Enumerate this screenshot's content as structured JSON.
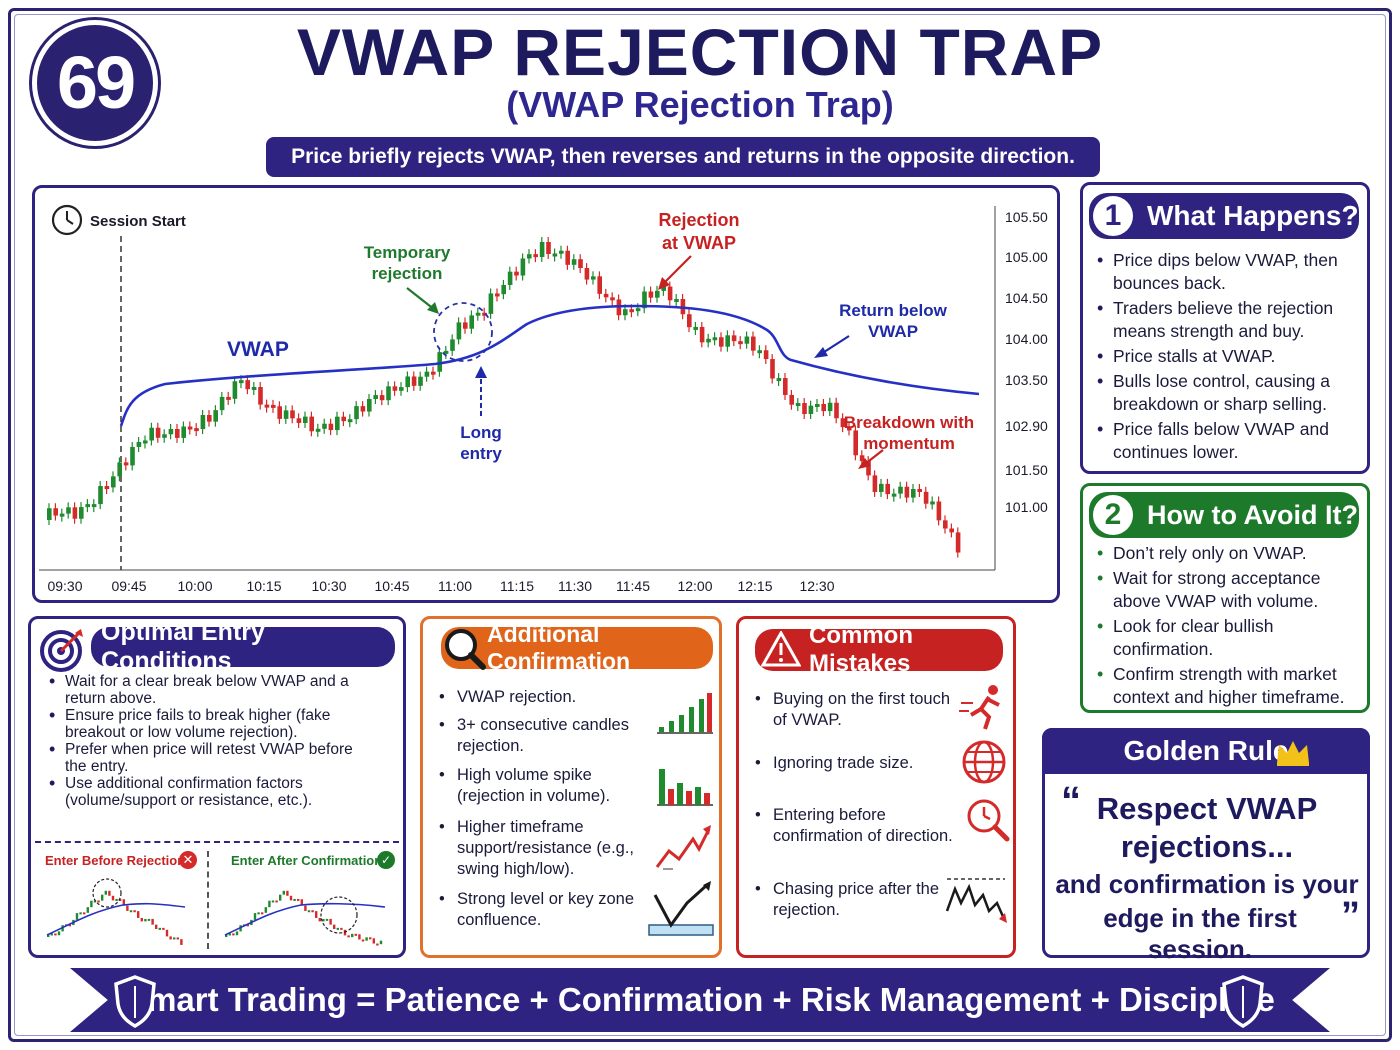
{
  "header": {
    "number": "69",
    "title": "VWAP REJECTION TRAP",
    "subtitle": "(VWAP Rejection Trap)",
    "tagline": "Price briefly rejects VWAP, then reverses and returns in the opposite direction."
  },
  "chart_data": {
    "type": "candlestick",
    "session_label": "Session Start",
    "x_ticks": [
      "09:30",
      "09:45",
      "10:00",
      "10:15",
      "10:30",
      "10:45",
      "11:00",
      "11:15",
      "11:30",
      "11:45",
      "12:00",
      "12:15",
      "12:30"
    ],
    "y_ticks": [
      "105.50",
      "105.00",
      "104.50",
      "104.00",
      "103.50",
      "102.90",
      "101.50",
      "101.00"
    ],
    "vwap_label": "VWAP",
    "annotations": {
      "temporary_rejection": "Temporary\nrejection",
      "rejection_at_vwap": "Rejection\nat VWAP",
      "return_below": "Return below\nVWAP",
      "long_entry": "Long\nentry",
      "breakdown": "Breakdown with\nmomentum"
    },
    "colors": {
      "up": "#1f8a2e",
      "down": "#d42a2a",
      "vwap": "#2630c4"
    }
  },
  "what_happens": {
    "number": "1",
    "title": "What Happens?",
    "items": [
      "Price dips below VWAP, then bounces back.",
      "Traders believe the rejection means strength and buy.",
      "Price stalls at VWAP.",
      "Bulls lose control, causing a breakdown or sharp selling.",
      "Price falls below VWAP and continues lower."
    ]
  },
  "how_to_avoid": {
    "number": "2",
    "title": "How to Avoid It?",
    "items": [
      "Don’t rely only on VWAP.",
      "Wait for strong acceptance above VWAP with volume.",
      "Look for clear bullish confirmation.",
      "Confirm strength with market context and higher timeframe."
    ]
  },
  "optimal_entry": {
    "title": "Optimal Entry Conditions",
    "items": [
      "Wait for a clear break below VWAP and a return above.",
      "Ensure price fails to break higher (fake breakout or low volume rejection).",
      "Prefer when price will retest VWAP before the entry.",
      "Use additional confirmation factors (volume/support or resistance, etc.)."
    ],
    "bad_label": "Enter Before Rejection",
    "good_label": "Enter After Confirmation"
  },
  "additional_confirmation": {
    "title": "Additional Confirmation",
    "items": [
      "VWAP rejection.",
      "3+ consecutive candles rejection.",
      "High volume spike (rejection in volume).",
      "Higher timeframe support/resistance (e.g., swing high/low).",
      "Strong level or key zone confluence."
    ]
  },
  "common_mistakes": {
    "title": "Common Mistakes",
    "items": [
      "Buying on the first touch of VWAP.",
      "Ignoring trade size.",
      "Entering before confirmation of direction.",
      "Chasing price after the rejection."
    ]
  },
  "golden_rule": {
    "title": "Golden Rule",
    "line1": "Respect VWAP",
    "line2": "rejections...",
    "line3": "and confirmation is your",
    "line4": "edge in the first session."
  },
  "footer": {
    "text": "Smart Trading = Patience + Confirmation + Risk Management + Discipline"
  }
}
